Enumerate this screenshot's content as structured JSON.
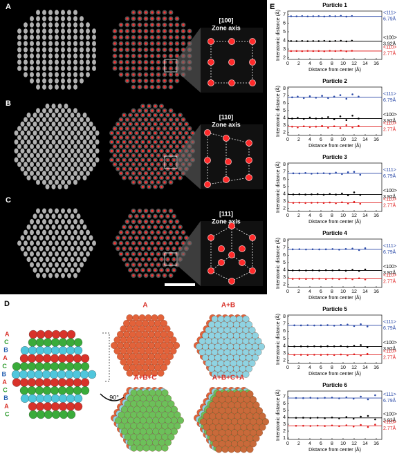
{
  "panels": {
    "letters": [
      "A",
      "B",
      "C",
      "D",
      "E"
    ],
    "zone_axes": [
      {
        "index": "[100]",
        "label": "Zone axis"
      },
      {
        "index": "[110]",
        "label": "Zone axis"
      },
      {
        "index": "[111]",
        "label": "Zone axis"
      }
    ],
    "stacking": [
      "A",
      "C",
      "B",
      "A",
      "C",
      "B",
      "A",
      "C",
      "B",
      "A",
      "C"
    ],
    "rotation": "90°",
    "views": [
      "A",
      "A+B",
      "A+B+C",
      "A+B+C+A"
    ]
  },
  "chart_data": [
    {
      "type": "scatter",
      "title": "Particle 1",
      "x_label": "Distance from center (Å)",
      "y_label": "Interatomic distance (Å)",
      "xlim": [
        0,
        17
      ],
      "xticks": [
        0,
        2,
        4,
        6,
        8,
        10,
        12,
        14,
        16
      ],
      "ylim": [
        1.8,
        7.4
      ],
      "yticks": [
        2,
        3,
        4,
        5,
        6,
        7
      ],
      "x": [
        0.6,
        1.6,
        2.6,
        3.6,
        4.6,
        5.6,
        6.6,
        7.6,
        8.6,
        9.6,
        10.6,
        11.6
      ],
      "series": [
        {
          "name": "<111>",
          "color": "#2b4aa8",
          "ref": {
            "value": 6.79,
            "label": "6.79Å"
          },
          "values": [
            6.8,
            6.79,
            6.82,
            6.78,
            6.8,
            6.81,
            6.77,
            6.82,
            6.8,
            6.85,
            6.76,
            6.83
          ]
        },
        {
          "name": "<100>",
          "color": "#000000",
          "ref": {
            "value": 3.92,
            "label": "3.92Å"
          },
          "values": [
            3.93,
            3.92,
            3.94,
            3.91,
            3.93,
            3.92,
            3.95,
            3.9,
            3.94,
            3.96,
            3.89,
            3.97
          ]
        },
        {
          "name": "<110>",
          "color": "#e02020",
          "ref": {
            "value": 2.77,
            "label": "2.77Å"
          },
          "values": [
            2.77,
            2.78,
            2.76,
            2.79,
            2.77,
            2.78,
            2.75,
            2.8,
            2.77,
            2.82,
            2.74,
            2.8
          ]
        }
      ]
    },
    {
      "type": "scatter",
      "title": "Particle 2",
      "x_label": "Distance from center (Å)",
      "y_label": "Interatomic distance (Å)",
      "xlim": [
        0,
        17
      ],
      "xticks": [
        0,
        2,
        4,
        6,
        8,
        10,
        12,
        14,
        16
      ],
      "ylim": [
        1.6,
        8.2
      ],
      "yticks": [
        2,
        3,
        4,
        5,
        6,
        7,
        8
      ],
      "x": [
        0.8,
        1.8,
        2.9,
        4.0,
        5.1,
        6.2,
        7.3,
        8.4,
        9.5,
        10.6,
        11.7,
        12.8
      ],
      "series": [
        {
          "name": "<111>",
          "color": "#2b4aa8",
          "ref": {
            "value": 6.79,
            "label": "6.79Å"
          },
          "values": [
            6.8,
            6.9,
            6.7,
            6.95,
            6.75,
            7.0,
            6.7,
            6.9,
            7.1,
            6.6,
            7.2,
            6.9
          ]
        },
        {
          "name": "<100>",
          "color": "#000000",
          "ref": {
            "value": 3.92,
            "label": "3.92Å"
          },
          "values": [
            3.9,
            4.0,
            3.85,
            4.05,
            3.9,
            3.95,
            4.1,
            3.8,
            4.2,
            3.7,
            4.3,
            3.9
          ]
        },
        {
          "name": "<110>",
          "color": "#e02020",
          "ref": {
            "value": 2.77,
            "label": "2.77Å"
          },
          "values": [
            2.8,
            2.7,
            2.85,
            2.75,
            2.8,
            2.9,
            2.65,
            2.85,
            2.6,
            3.0,
            2.7,
            2.9
          ]
        }
      ]
    },
    {
      "type": "scatter",
      "title": "Particle 3",
      "x_label": "Distance from center (Å)",
      "y_label": "Interatomic distance (Å)",
      "xlim": [
        0,
        17
      ],
      "xticks": [
        0,
        2,
        4,
        6,
        8,
        10,
        12,
        14,
        16
      ],
      "ylim": [
        1.6,
        8.2
      ],
      "yticks": [
        2,
        3,
        4,
        5,
        6,
        7,
        8
      ],
      "x": [
        1.0,
        2.1,
        3.2,
        4.3,
        5.4,
        6.5,
        7.6,
        8.7,
        9.8,
        10.9,
        12.0,
        13.1
      ],
      "series": [
        {
          "name": "<111>",
          "color": "#2b4aa8",
          "ref": {
            "value": 6.79,
            "label": "6.79Å"
          },
          "values": [
            6.8,
            6.78,
            6.85,
            6.75,
            6.8,
            6.82,
            6.76,
            6.9,
            6.7,
            6.95,
            7.0,
            6.6
          ]
        },
        {
          "name": "<100>",
          "color": "#000000",
          "ref": {
            "value": 3.92,
            "label": "3.92Å"
          },
          "values": [
            3.92,
            3.95,
            3.9,
            3.93,
            3.96,
            3.88,
            3.98,
            3.9,
            4.05,
            3.8,
            4.2,
            3.85
          ]
        },
        {
          "name": "<110>",
          "color": "#e02020",
          "ref": {
            "value": 2.77,
            "label": "2.77Å"
          },
          "values": [
            2.77,
            2.8,
            2.75,
            2.78,
            2.8,
            2.76,
            2.82,
            2.72,
            2.85,
            2.7,
            2.9,
            2.65
          ]
        }
      ]
    },
    {
      "type": "scatter",
      "title": "Particle 4",
      "x_label": "Distance from center (Å)",
      "y_label": "Interatomic distance (Å)",
      "xlim": [
        0,
        17
      ],
      "xticks": [
        0,
        2,
        4,
        6,
        8,
        10,
        12,
        14,
        16
      ],
      "ylim": [
        1.6,
        8.2
      ],
      "yticks": [
        2,
        3,
        4,
        5,
        6,
        7,
        8
      ],
      "x": [
        0.9,
        2.1,
        3.3,
        4.5,
        5.7,
        6.9,
        8.1,
        9.3,
        10.5,
        11.7,
        12.9,
        14.0
      ],
      "series": [
        {
          "name": "<111>",
          "color": "#2b4aa8",
          "ref": {
            "value": 6.79,
            "label": "6.79Å"
          },
          "values": [
            6.8,
            6.82,
            6.78,
            6.81,
            6.79,
            6.8,
            6.84,
            6.76,
            6.85,
            6.9,
            6.7,
            6.95
          ]
        },
        {
          "name": "<100>",
          "color": "#000000",
          "ref": {
            "value": 3.92,
            "label": "3.92Å"
          },
          "values": [
            3.92,
            3.93,
            3.91,
            3.94,
            3.9,
            3.95,
            3.92,
            3.97,
            3.88,
            4.0,
            3.85,
            4.05
          ]
        },
        {
          "name": "<110>",
          "color": "#e02020",
          "ref": {
            "value": 2.77,
            "label": "2.77Å"
          },
          "values": [
            2.77,
            2.78,
            2.76,
            2.78,
            2.79,
            2.75,
            2.8,
            2.74,
            2.82,
            2.72,
            2.85,
            2.7
          ]
        }
      ]
    },
    {
      "type": "scatter",
      "title": "Particle 5",
      "x_label": "Distance from center (Å)",
      "y_label": "Interatomic distance (Å)",
      "xlim": [
        0,
        17
      ],
      "xticks": [
        0,
        2,
        4,
        6,
        8,
        10,
        12,
        14,
        16
      ],
      "ylim": [
        1.6,
        8.2
      ],
      "yticks": [
        2,
        3,
        4,
        5,
        6,
        7,
        8
      ],
      "x": [
        1.2,
        2.4,
        3.6,
        4.8,
        6.0,
        7.2,
        8.4,
        9.6,
        10.8,
        12.0,
        13.2,
        14.4
      ],
      "series": [
        {
          "name": "<111>",
          "color": "#2b4aa8",
          "ref": {
            "value": 6.79,
            "label": "6.79Å"
          },
          "values": [
            6.8,
            6.79,
            6.82,
            6.78,
            6.8,
            6.83,
            6.76,
            6.85,
            6.9,
            6.7,
            6.95,
            6.65
          ]
        },
        {
          "name": "<100>",
          "color": "#000000",
          "ref": {
            "value": 3.92,
            "label": "3.92Å"
          },
          "values": [
            3.92,
            3.93,
            3.91,
            3.94,
            3.9,
            3.95,
            3.93,
            3.97,
            3.88,
            4.0,
            4.1,
            3.8
          ]
        },
        {
          "name": "<110>",
          "color": "#e02020",
          "ref": {
            "value": 2.77,
            "label": "2.77Å"
          },
          "values": [
            2.77,
            2.78,
            2.76,
            2.79,
            2.77,
            2.8,
            2.75,
            2.82,
            2.72,
            2.85,
            2.7,
            2.9
          ]
        }
      ]
    },
    {
      "type": "scatter",
      "title": "Particle 6",
      "x_label": "Distance from center (Å)",
      "y_label": "Interatomic distance (Å)",
      "xlim": [
        0,
        17
      ],
      "xticks": [
        0,
        2,
        4,
        6,
        8,
        10,
        12,
        14,
        16
      ],
      "ylim": [
        0.8,
        7.8
      ],
      "yticks": [
        1,
        2,
        3,
        4,
        5,
        6,
        7
      ],
      "x": [
        1.5,
        2.8,
        4.1,
        5.4,
        6.7,
        8.0,
        9.3,
        10.6,
        11.9,
        13.2,
        14.5,
        15.8
      ],
      "series": [
        {
          "name": "<111>",
          "color": "#2b4aa8",
          "ref": {
            "value": 6.79,
            "label": "6.79Å"
          },
          "values": [
            6.8,
            6.78,
            6.83,
            6.76,
            6.82,
            6.85,
            6.75,
            6.9,
            6.7,
            7.0,
            6.6,
            7.2
          ]
        },
        {
          "name": "<100>",
          "color": "#000000",
          "ref": {
            "value": 3.92,
            "label": "3.92Å"
          },
          "values": [
            3.92,
            3.94,
            3.9,
            3.95,
            3.88,
            3.97,
            3.85,
            4.05,
            3.8,
            4.1,
            4.2,
            3.7
          ]
        },
        {
          "name": "<110>",
          "color": "#e02020",
          "ref": {
            "value": 2.77,
            "label": "2.77Å"
          },
          "values": [
            2.77,
            2.78,
            2.75,
            2.8,
            2.74,
            2.82,
            2.72,
            2.85,
            2.68,
            2.9,
            2.6,
            2.95
          ]
        }
      ]
    }
  ]
}
